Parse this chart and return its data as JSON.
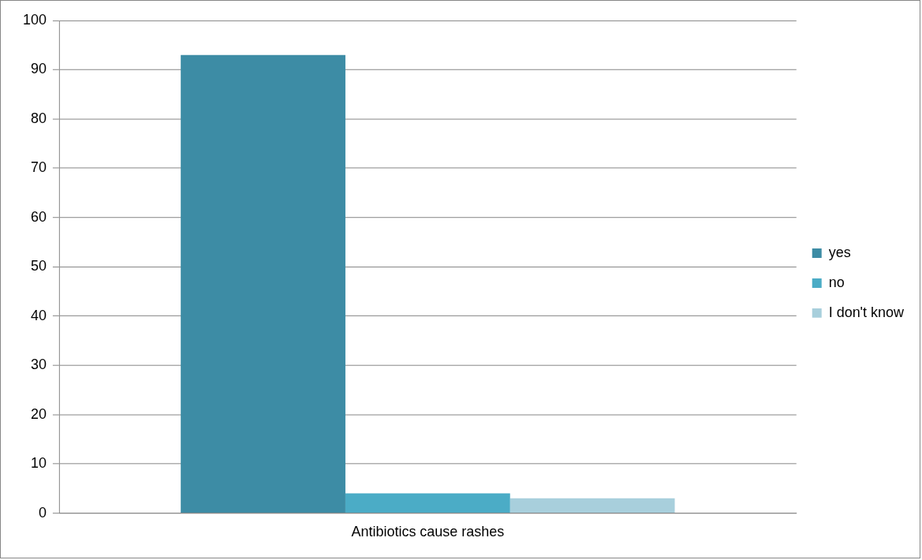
{
  "chart_data": {
    "type": "bar",
    "categories": [
      "Antibiotics cause rashes"
    ],
    "series": [
      {
        "name": "yes",
        "color": "#3d8ca5",
        "values": [
          93
        ]
      },
      {
        "name": "no",
        "color": "#4bacc6",
        "values": [
          4
        ]
      },
      {
        "name": "I don't know",
        "color": "#a8cfdc",
        "values": [
          3
        ]
      }
    ],
    "ylim": [
      0,
      100
    ],
    "yticks": [
      0,
      10,
      20,
      30,
      40,
      50,
      60,
      70,
      80,
      90,
      100
    ],
    "grid": "y",
    "legend": "right"
  }
}
